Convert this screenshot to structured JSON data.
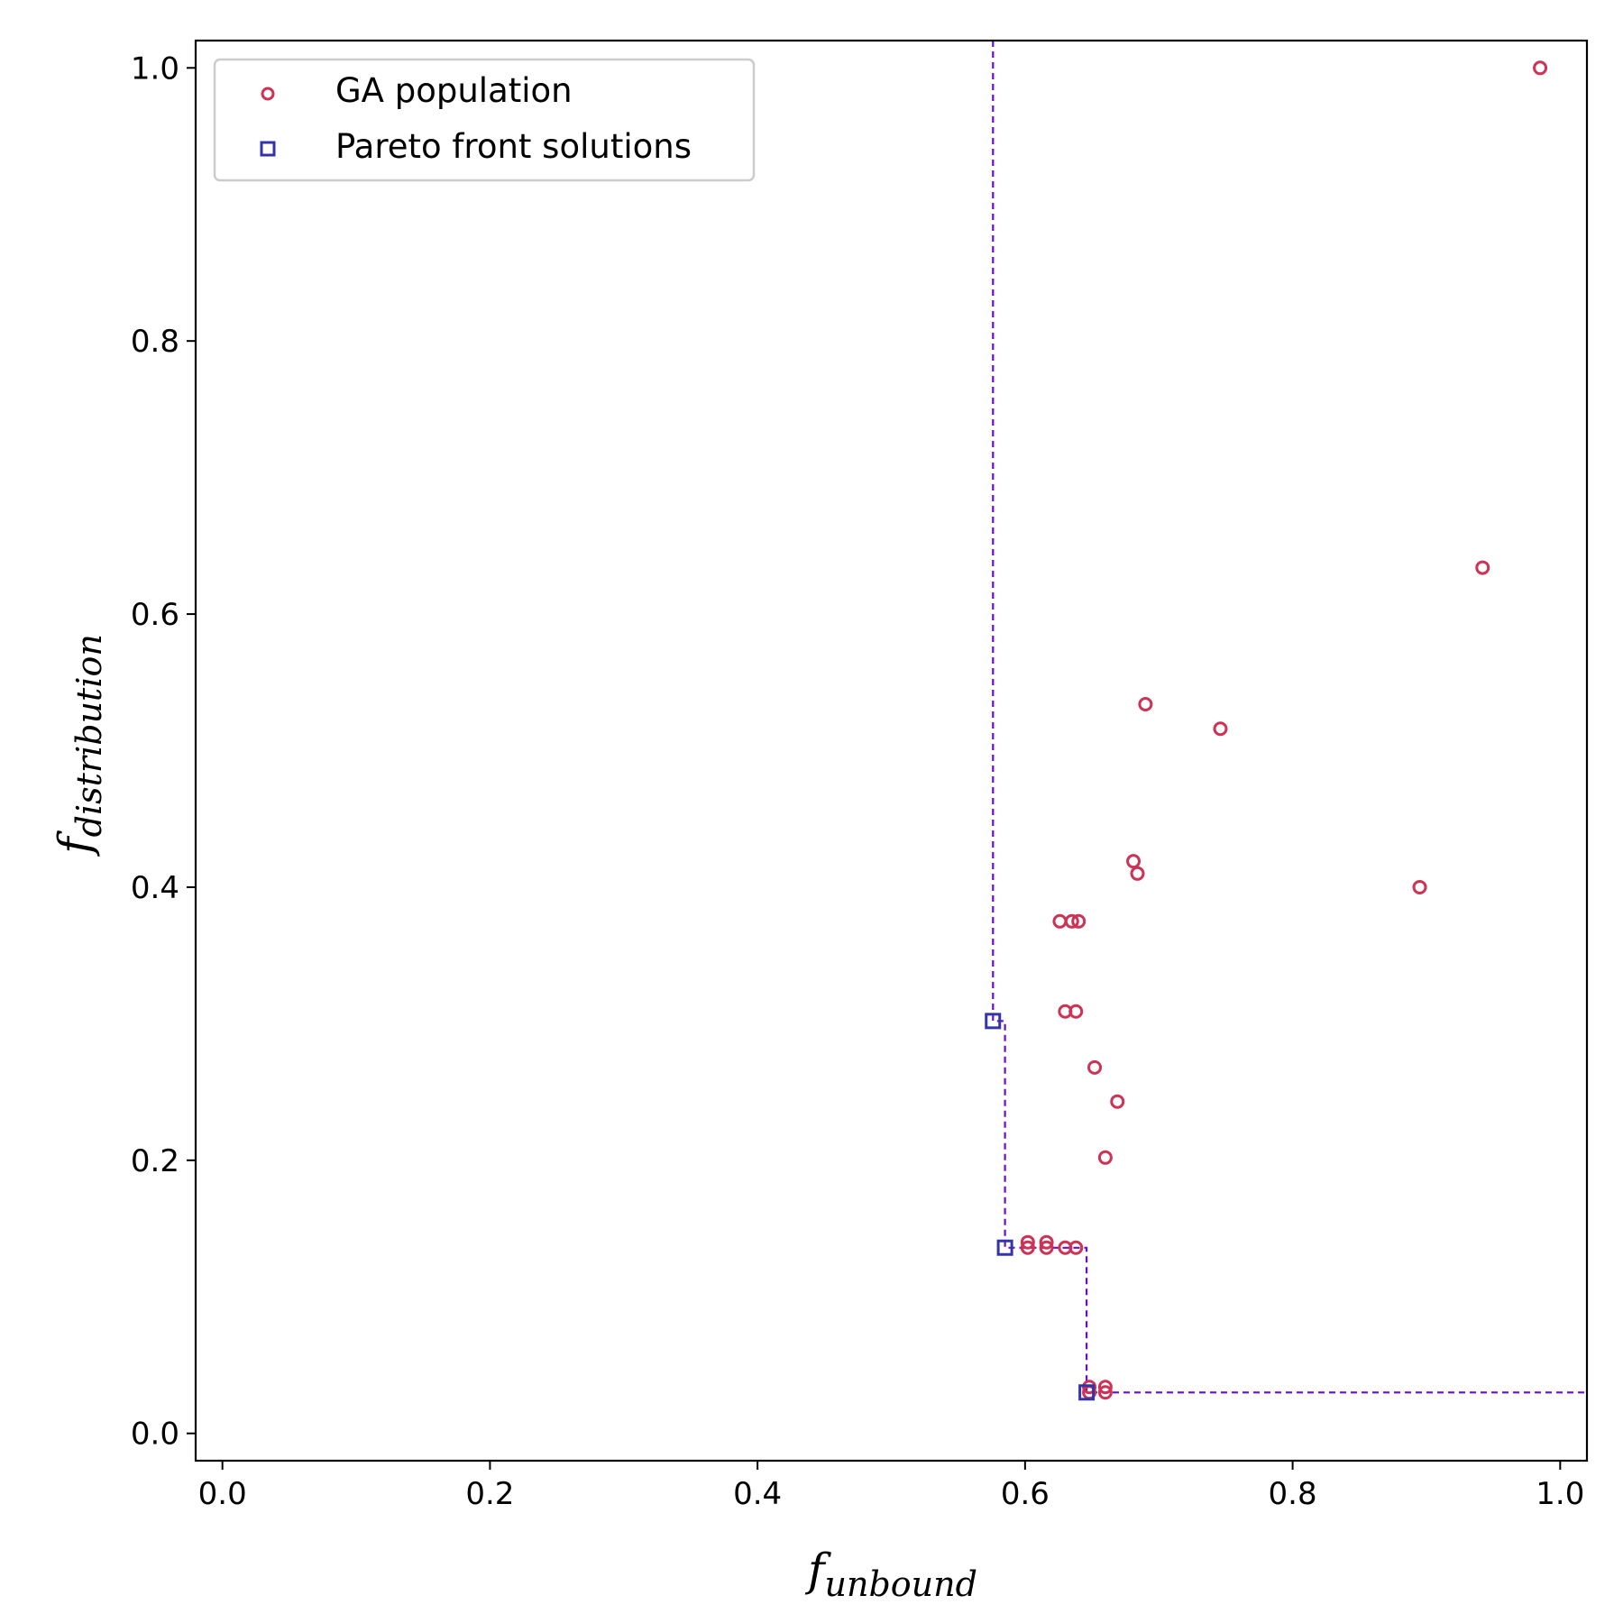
{
  "chart_data": {
    "type": "scatter",
    "title": "",
    "xlabel": {
      "base": "f",
      "sub": "unbound"
    },
    "ylabel": {
      "base": "f",
      "sub": "distribution"
    },
    "xlim": [
      -0.02,
      1.02
    ],
    "ylim": [
      -0.02,
      1.02
    ],
    "xticks": [
      0.0,
      0.2,
      0.4,
      0.6,
      0.8,
      1.0
    ],
    "xtick_labels": [
      "0.0",
      "0.2",
      "0.4",
      "0.6",
      "0.8",
      "1.0"
    ],
    "yticks": [
      0.0,
      0.2,
      0.4,
      0.6,
      0.8,
      1.0
    ],
    "ytick_labels": [
      "0.0",
      "0.2",
      "0.4",
      "0.6",
      "0.8",
      "1.0"
    ],
    "grid": false,
    "legend_position": "top-left",
    "series": [
      {
        "name": "GA population",
        "marker": "circle-open",
        "color": "#cc3355",
        "points": [
          [
            0.985,
            1.0
          ],
          [
            0.942,
            0.634
          ],
          [
            0.895,
            0.4
          ],
          [
            0.69,
            0.534
          ],
          [
            0.746,
            0.516
          ],
          [
            0.681,
            0.419
          ],
          [
            0.684,
            0.41
          ],
          [
            0.626,
            0.375
          ],
          [
            0.635,
            0.375
          ],
          [
            0.64,
            0.375
          ],
          [
            0.63,
            0.309
          ],
          [
            0.638,
            0.309
          ],
          [
            0.652,
            0.268
          ],
          [
            0.669,
            0.243
          ],
          [
            0.66,
            0.202
          ],
          [
            0.602,
            0.14
          ],
          [
            0.616,
            0.14
          ],
          [
            0.602,
            0.136
          ],
          [
            0.616,
            0.136
          ],
          [
            0.63,
            0.136
          ],
          [
            0.638,
            0.136
          ],
          [
            0.648,
            0.034
          ],
          [
            0.66,
            0.034
          ],
          [
            0.648,
            0.03
          ],
          [
            0.66,
            0.03
          ]
        ]
      },
      {
        "name": "Pareto front solutions",
        "marker": "square-open",
        "color": "#3333aa",
        "points": [
          [
            0.576,
            0.302
          ],
          [
            0.585,
            0.136
          ],
          [
            0.646,
            0.03
          ]
        ]
      }
    ],
    "pareto_step_line": {
      "color": "#6a0dcc",
      "style": "dashed",
      "points": [
        [
          0.576,
          1.02
        ],
        [
          0.576,
          0.302
        ],
        [
          0.585,
          0.302
        ],
        [
          0.585,
          0.136
        ],
        [
          0.646,
          0.136
        ],
        [
          0.646,
          0.03
        ],
        [
          1.02,
          0.03
        ]
      ]
    }
  }
}
